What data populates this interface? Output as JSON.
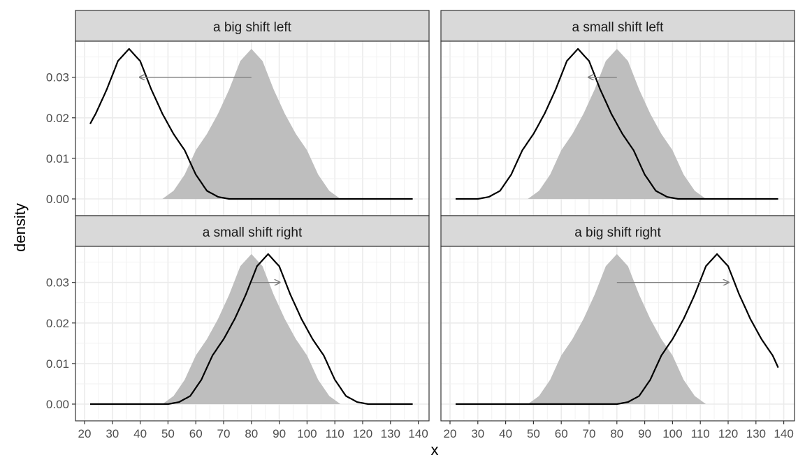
{
  "chart_data": {
    "type": "area",
    "xlabel": "x",
    "ylabel": "density",
    "xlim": [
      20,
      140
    ],
    "ylim": [
      0,
      0.038
    ],
    "x_ticks": [
      20,
      30,
      40,
      50,
      60,
      70,
      80,
      90,
      100,
      110,
      120,
      130,
      140
    ],
    "x_tick_labels": [
      "20",
      "30",
      "40",
      "50",
      "60",
      "70",
      "80",
      "90",
      "100",
      "110",
      "120",
      "130",
      "140"
    ],
    "y_ticks": [
      0,
      0.01,
      0.02,
      0.03
    ],
    "y_tick_labels": [
      "0.00",
      "0.01",
      "0.02",
      "0.03"
    ],
    "grid": true,
    "colors": {
      "reference_fill": "#bebebe",
      "shifted_line": "#000000",
      "arrow": "#7f7f7f",
      "strip_fill": "#d9d9d9",
      "grid_major": "#ebebeb",
      "panel_border": "#333333"
    },
    "reference": {
      "x": [
        48,
        52,
        56,
        60,
        64,
        68,
        72,
        76,
        80,
        84,
        88,
        92,
        96,
        100,
        104,
        108,
        112
      ],
      "y": [
        0,
        0.002,
        0.006,
        0.012,
        0.016,
        0.021,
        0.027,
        0.034,
        0.037,
        0.034,
        0.027,
        0.021,
        0.016,
        0.012,
        0.006,
        0.002,
        0
      ]
    },
    "shifted_profile": {
      "dx": [
        -58,
        -55,
        -50,
        -45,
        -40,
        -36,
        -32,
        -28,
        -24,
        -20,
        -16,
        -12,
        -8,
        -4,
        0,
        4,
        8,
        12,
        16,
        20,
        24,
        28,
        32,
        36,
        40,
        45,
        50,
        55,
        58
      ],
      "y": [
        0,
        0,
        0,
        0,
        0,
        0.0005,
        0.002,
        0.006,
        0.012,
        0.016,
        0.021,
        0.027,
        0.034,
        0.037,
        0.034,
        0.027,
        0.021,
        0.016,
        0.012,
        0.006,
        0.002,
        0.0005,
        0,
        0,
        0,
        0,
        0,
        0,
        0
      ]
    },
    "x_data_range": [
      22,
      138
    ],
    "panels": [
      {
        "title": "a big shift left",
        "shift": -40,
        "arrow": {
          "from": 80,
          "to": 40,
          "y": 0.03
        }
      },
      {
        "title": "a small shift left",
        "shift": -10,
        "arrow": {
          "from": 80,
          "to": 70,
          "y": 0.03
        }
      },
      {
        "title": "a small shift right",
        "shift": 10,
        "arrow": {
          "from": 80,
          "to": 90,
          "y": 0.03
        }
      },
      {
        "title": "a big shift right",
        "shift": 40,
        "arrow": {
          "from": 80,
          "to": 120,
          "y": 0.03
        }
      }
    ]
  }
}
